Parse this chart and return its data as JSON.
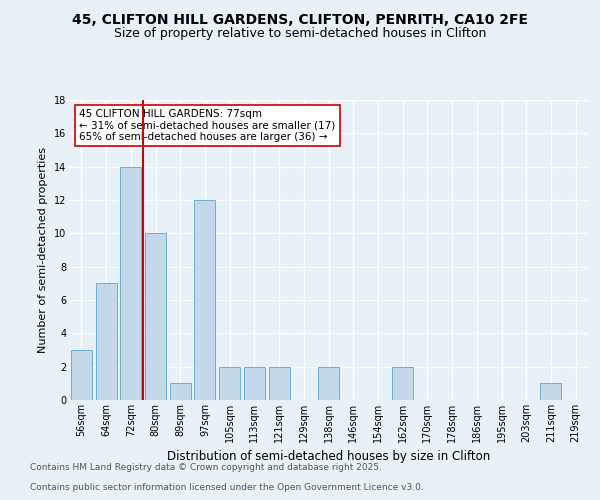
{
  "title1": "45, CLIFTON HILL GARDENS, CLIFTON, PENRITH, CA10 2FE",
  "title2": "Size of property relative to semi-detached houses in Clifton",
  "xlabel": "Distribution of semi-detached houses by size in Clifton",
  "ylabel": "Number of semi-detached properties",
  "categories": [
    "56sqm",
    "64sqm",
    "72sqm",
    "80sqm",
    "89sqm",
    "97sqm",
    "105sqm",
    "113sqm",
    "121sqm",
    "129sqm",
    "138sqm",
    "146sqm",
    "154sqm",
    "162sqm",
    "170sqm",
    "178sqm",
    "186sqm",
    "195sqm",
    "203sqm",
    "211sqm",
    "219sqm"
  ],
  "values": [
    3,
    7,
    14,
    10,
    1,
    12,
    2,
    2,
    2,
    0,
    2,
    0,
    0,
    2,
    0,
    0,
    0,
    0,
    0,
    1,
    0
  ],
  "bar_color": "#c5d8ea",
  "bar_edgecolor": "#6aaed6",
  "vline_color": "#cc0000",
  "annotation_title": "45 CLIFTON HILL GARDENS: 77sqm",
  "annotation_line1": "← 31% of semi-detached houses are smaller (17)",
  "annotation_line2": "65% of semi-detached houses are larger (36) →",
  "annotation_box_color": "#ffffff",
  "annotation_box_edgecolor": "#cc0000",
  "ylim": [
    0,
    18
  ],
  "yticks": [
    0,
    2,
    4,
    6,
    8,
    10,
    12,
    14,
    16,
    18
  ],
  "footer1": "Contains HM Land Registry data © Crown copyright and database right 2025.",
  "footer2": "Contains public sector information licensed under the Open Government Licence v3.0.",
  "bg_color": "#e8f0f8",
  "plot_bg_color": "#e8f0f8",
  "grid_color": "#ffffff",
  "title1_fontsize": 10,
  "title2_fontsize": 9,
  "xlabel_fontsize": 8.5,
  "ylabel_fontsize": 8,
  "tick_fontsize": 7,
  "footer_fontsize": 6.5,
  "annot_fontsize": 7.5
}
